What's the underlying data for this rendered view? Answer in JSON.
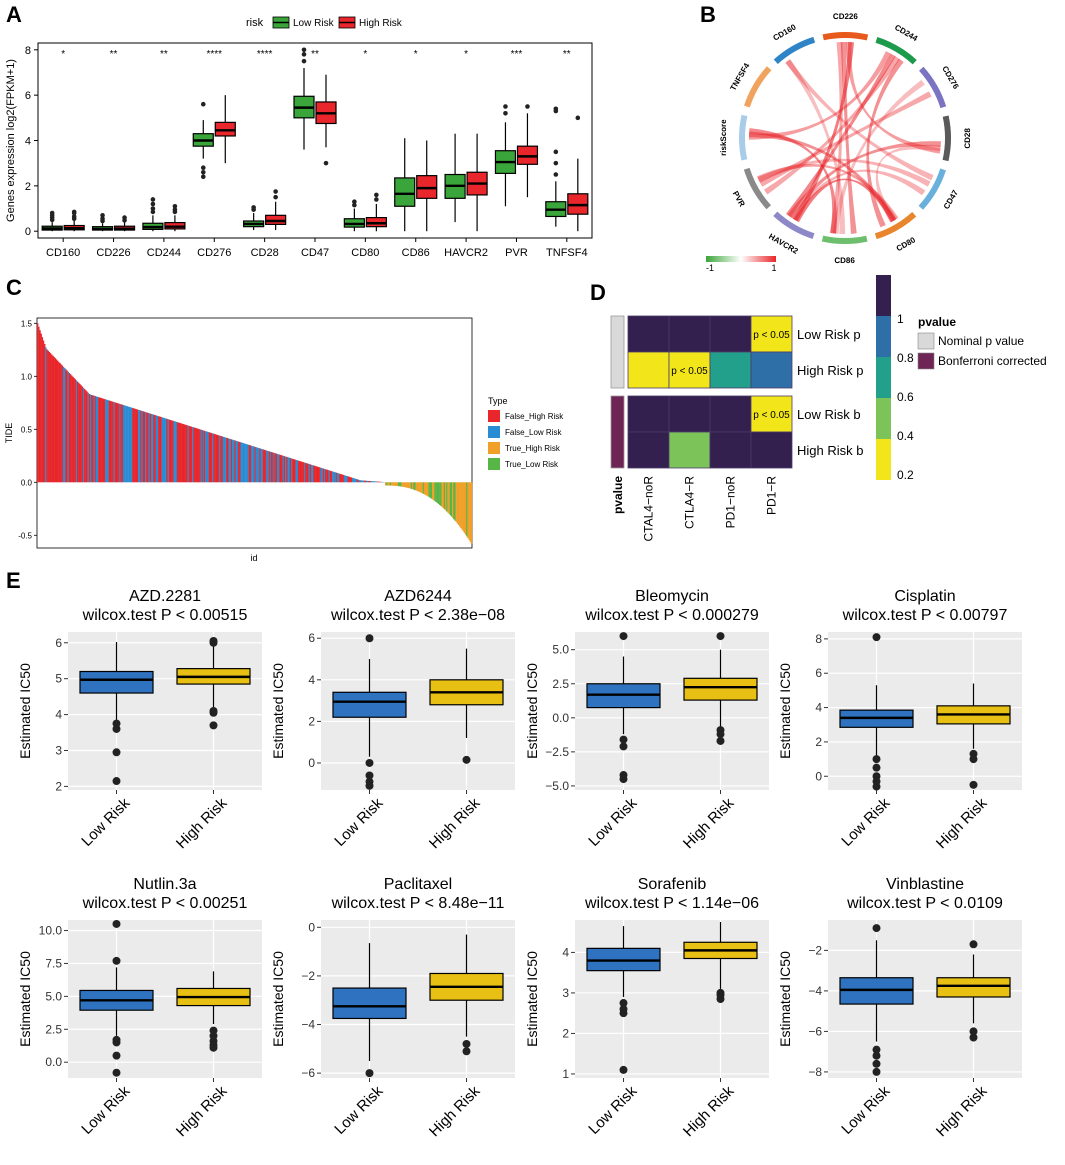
{
  "panels": {
    "A": "A",
    "B": "B",
    "C": "C",
    "D": "D",
    "E": "E"
  },
  "colors": {
    "low": "#3aa53a",
    "high": "#e8262b",
    "drug_low": "#2f72c0",
    "drug_high": "#e8c013",
    "panel_bg": "#ebebeb"
  },
  "chart_data": [
    {
      "id": "A",
      "type": "boxplot",
      "ylabel": "Genes expression log2(FPKM+1)",
      "ylim": [
        -0.3,
        8.3
      ],
      "yticks": [
        0,
        2,
        4,
        6,
        8
      ],
      "legend": {
        "title": "risk",
        "items": [
          "Low Risk",
          "High Risk"
        ]
      },
      "categories": [
        "CD160",
        "CD226",
        "CD244",
        "CD276",
        "CD28",
        "CD47",
        "CD80",
        "CD86",
        "HAVCR2",
        "PVR",
        "TNFSF4"
      ],
      "significance": [
        "*",
        "**",
        "**",
        "****",
        "****",
        "**",
        "*",
        "*",
        "*",
        "***",
        "**"
      ],
      "series": [
        {
          "name": "Low Risk",
          "boxes": [
            {
              "min": 0,
              "q1": 0.05,
              "med": 0.12,
              "q3": 0.22,
              "max": 0.4,
              "out": [
                0.5,
                0.6,
                0.7,
                0.8
              ]
            },
            {
              "min": 0,
              "q1": 0.05,
              "med": 0.1,
              "q3": 0.2,
              "max": 0.35,
              "out": [
                0.45,
                0.55,
                0.7
              ]
            },
            {
              "min": 0,
              "q1": 0.08,
              "med": 0.18,
              "q3": 0.35,
              "max": 0.7,
              "out": [
                0.85,
                1.0,
                1.2,
                1.4
              ]
            },
            {
              "min": 3.2,
              "q1": 3.75,
              "med": 4.0,
              "q3": 4.3,
              "max": 4.9,
              "out": [
                2.4,
                2.6,
                2.8,
                5.6
              ]
            },
            {
              "min": 0.05,
              "q1": 0.2,
              "med": 0.32,
              "q3": 0.45,
              "max": 0.8,
              "out": [
                0.95,
                1.05
              ]
            },
            {
              "min": 3.6,
              "q1": 5.0,
              "med": 5.45,
              "q3": 5.95,
              "max": 7.2,
              "out": [
                7.5,
                7.8,
                8.0
              ]
            },
            {
              "min": 0,
              "q1": 0.18,
              "med": 0.32,
              "q3": 0.55,
              "max": 1.0,
              "out": [
                1.15,
                1.3
              ]
            },
            {
              "min": 0,
              "q1": 1.1,
              "med": 1.65,
              "q3": 2.35,
              "max": 4.1,
              "out": []
            },
            {
              "min": 0.4,
              "q1": 1.45,
              "med": 2.0,
              "q3": 2.5,
              "max": 4.3,
              "out": []
            },
            {
              "min": 1.1,
              "q1": 2.55,
              "med": 3.05,
              "q3": 3.55,
              "max": 4.8,
              "out": [
                5.2,
                5.5
              ]
            },
            {
              "min": 0.2,
              "q1": 0.65,
              "med": 0.95,
              "q3": 1.3,
              "max": 2.2,
              "out": [
                2.5,
                3.0,
                3.5,
                5.3,
                5.4
              ]
            }
          ]
        },
        {
          "name": "High Risk",
          "boxes": [
            {
              "min": 0,
              "q1": 0.06,
              "med": 0.13,
              "q3": 0.25,
              "max": 0.45,
              "out": [
                0.55,
                0.65,
                0.8,
                0.85
              ]
            },
            {
              "min": 0,
              "q1": 0.05,
              "med": 0.11,
              "q3": 0.22,
              "max": 0.38,
              "out": [
                0.48,
                0.6
              ]
            },
            {
              "min": 0,
              "q1": 0.1,
              "med": 0.2,
              "q3": 0.38,
              "max": 0.7,
              "out": [
                0.85,
                0.95,
                1.1
              ]
            },
            {
              "min": 3.0,
              "q1": 4.2,
              "med": 4.45,
              "q3": 4.8,
              "max": 6.0,
              "out": []
            },
            {
              "min": 0.05,
              "q1": 0.3,
              "med": 0.45,
              "q3": 0.7,
              "max": 1.3,
              "out": [
                1.5,
                1.75
              ]
            },
            {
              "min": 3.7,
              "q1": 4.75,
              "med": 5.2,
              "q3": 5.7,
              "max": 6.9,
              "out": [
                3.0
              ]
            },
            {
              "min": 0,
              "q1": 0.2,
              "med": 0.35,
              "q3": 0.6,
              "max": 1.2,
              "out": [
                1.4,
                1.6
              ]
            },
            {
              "min": 0,
              "q1": 1.45,
              "med": 1.9,
              "q3": 2.45,
              "max": 4.0,
              "out": []
            },
            {
              "min": 0,
              "q1": 1.6,
              "med": 2.1,
              "q3": 2.6,
              "max": 4.3,
              "out": []
            },
            {
              "min": 1.5,
              "q1": 2.95,
              "med": 3.3,
              "q3": 3.75,
              "max": 5.2,
              "out": [
                5.5
              ]
            },
            {
              "min": 0,
              "q1": 0.75,
              "med": 1.15,
              "q3": 1.65,
              "max": 3.2,
              "out": [
                5.0
              ]
            }
          ]
        }
      ]
    },
    {
      "id": "B",
      "type": "chord",
      "sectors": [
        "CD160",
        "CD226",
        "CD244",
        "CD276",
        "CD28",
        "CD47",
        "CD80",
        "CD86",
        "HAVCR2",
        "PVR",
        "riskScore",
        "TNFSF4"
      ],
      "sector_colors": [
        "#2f83c7",
        "#e75a1b",
        "#1d9a4b",
        "#7b74c2",
        "#5a5a5a",
        "#6ab0dd",
        "#e9852c",
        "#6dbf6d",
        "#8d88c8",
        "#8a8a8a",
        "#a9cde8",
        "#f0a35e"
      ],
      "scale_labels": [
        "-1",
        "1"
      ]
    },
    {
      "id": "C",
      "type": "bar",
      "ylabel": "TIDE",
      "xlabel": "id",
      "ylim": [
        -0.62,
        1.55
      ],
      "yticks": [
        -0.5,
        0.0,
        0.5,
        1.0,
        1.5
      ],
      "legend": {
        "title": "Type",
        "items": [
          "False_High Risk",
          "False_Low Risk",
          "True_High Risk",
          "True_Low Risk"
        ]
      },
      "type_colors": [
        "#e8262b",
        "#2a8cd3",
        "#f0a028",
        "#58b548"
      ],
      "n_bars": 370,
      "description": "sorted descending TIDE values; positive bars are False_* types, negative bars are True_* types"
    },
    {
      "id": "D",
      "type": "heatmap",
      "columns": [
        "CTAL4−noR",
        "CTLA4−R",
        "PD1−noR",
        "PD1−R"
      ],
      "rows": [
        "Low Risk p",
        "High Risk p",
        "Low Risk b",
        "High Risk b"
      ],
      "values": [
        [
          1.0,
          1.0,
          1.0,
          0.05
        ],
        [
          0.05,
          0.05,
          0.45,
          0.75
        ],
        [
          1.0,
          1.0,
          1.0,
          0.05
        ],
        [
          1.0,
          0.35,
          1.0,
          1.0
        ]
      ],
      "cell_labels": [
        [
          "",
          "",
          "",
          "p < 0.05"
        ],
        [
          "",
          "p < 0.05",
          "",
          ""
        ],
        [
          "",
          "",
          "",
          "p < 0.05"
        ],
        [
          "",
          "",
          "",
          ""
        ]
      ],
      "colorbar_ticks": [
        "1",
        "0.8",
        "0.6",
        "0.4",
        "0.2"
      ],
      "row_annotation_label": "pvalue",
      "legend": {
        "title": "pvalue",
        "items": [
          "Nominal p value",
          "Bonferroni corrected"
        ]
      }
    },
    {
      "id": "E",
      "type": "boxplot-grid",
      "ylabel": "Estimated IC50",
      "categories": [
        "Low Risk",
        "High Risk"
      ],
      "plots": [
        {
          "title": "AZD.2281",
          "subtitle": "wilcox.test P <  0.00515",
          "ylim": [
            1.9,
            6.3
          ],
          "yticks": [
            "2",
            "3",
            "4",
            "5",
            "6"
          ],
          "ytick_values": [
            2,
            3,
            4,
            5,
            6
          ],
          "boxes": [
            {
              "min": 3.85,
              "q1": 4.6,
              "med": 4.97,
              "q3": 5.2,
              "max": 6.02,
              "out": [
                3.75,
                3.6,
                2.95,
                2.15
              ]
            },
            {
              "min": 4.2,
              "q1": 4.85,
              "med": 5.05,
              "q3": 5.28,
              "max": 5.95,
              "out": [
                6.0,
                6.05,
                4.1,
                4.05,
                3.7
              ]
            }
          ]
        },
        {
          "title": "AZD6244",
          "subtitle": "wilcox.test P <  2.38e−08",
          "ylim": [
            -1.3,
            6.3
          ],
          "yticks": [
            "0",
            "2",
            "4",
            "6"
          ],
          "ytick_values": [
            0,
            2,
            4,
            6
          ],
          "boxes": [
            {
              "min": 0.3,
              "q1": 2.2,
              "med": 2.95,
              "q3": 3.4,
              "max": 5.0,
              "out": [
                6.0,
                0.0,
                -0.6,
                -0.9,
                -1.1
              ]
            },
            {
              "min": 1.2,
              "q1": 2.8,
              "med": 3.4,
              "q3": 4.0,
              "max": 5.5,
              "out": [
                0.15
              ]
            }
          ]
        },
        {
          "title": "Bleomycin",
          "subtitle": "wilcox.test P <  0.000279",
          "ylim": [
            -5.3,
            6.3
          ],
          "yticks": [
            "5.0",
            "2.5",
            "0.0",
            "−2.5",
            "−5.0"
          ],
          "ytick_values": [
            5,
            2.5,
            0,
            -2.5,
            -5
          ],
          "boxes": [
            {
              "min": -1.2,
              "q1": 0.75,
              "med": 1.7,
              "q3": 2.5,
              "max": 4.5,
              "out": [
                6.0,
                -1.6,
                -2.1,
                -4.2,
                -4.5
              ]
            },
            {
              "min": -0.7,
              "q1": 1.3,
              "med": 2.25,
              "q3": 2.9,
              "max": 5.0,
              "out": [
                6.0,
                -0.9,
                -1.2,
                -1.7
              ]
            }
          ]
        },
        {
          "title": "Cisplatin",
          "subtitle": "wilcox.test P <  0.00797",
          "ylim": [
            -0.8,
            8.4
          ],
          "yticks": [
            "8",
            "6",
            "4",
            "2",
            "0"
          ],
          "ytick_values": [
            8,
            6,
            4,
            2,
            0
          ],
          "boxes": [
            {
              "min": 1.2,
              "q1": 2.85,
              "med": 3.4,
              "q3": 3.85,
              "max": 5.3,
              "out": [
                8.1,
                1.0,
                0.5,
                0.0,
                -0.3,
                -0.6
              ]
            },
            {
              "min": 1.6,
              "q1": 3.05,
              "med": 3.6,
              "q3": 4.1,
              "max": 5.4,
              "out": [
                1.3,
                1.0,
                -0.5
              ]
            }
          ]
        },
        {
          "title": "Nutlin.3a",
          "subtitle": "wilcox.test P <  0.00251",
          "ylim": [
            -1.2,
            10.8
          ],
          "yticks": [
            "10.0",
            "7.5",
            "5.0",
            "2.5",
            "0.0"
          ],
          "ytick_values": [
            10,
            7.5,
            5,
            2.5,
            0
          ],
          "boxes": [
            {
              "min": 2.0,
              "q1": 3.95,
              "med": 4.7,
              "q3": 5.45,
              "max": 7.2,
              "out": [
                10.5,
                7.7,
                1.7,
                1.5,
                0.5,
                -0.8
              ]
            },
            {
              "min": 2.9,
              "q1": 4.3,
              "med": 4.95,
              "q3": 5.6,
              "max": 6.9,
              "out": [
                2.4,
                2.0,
                1.6,
                1.3,
                1.1
              ]
            }
          ]
        },
        {
          "title": "Paclitaxel",
          "subtitle": "wilcox.test P <  8.48e−11",
          "ylim": [
            -6.2,
            0.3
          ],
          "yticks": [
            "0",
            "−2",
            "−4",
            "−6"
          ],
          "ytick_values": [
            0,
            -2,
            -4,
            -6
          ],
          "boxes": [
            {
              "min": -5.5,
              "q1": -3.75,
              "med": -3.25,
              "q3": -2.5,
              "max": -0.65,
              "out": [
                -6.0
              ]
            },
            {
              "min": -4.5,
              "q1": -3.0,
              "med": -2.45,
              "q3": -1.9,
              "max": -0.3,
              "out": [
                -4.8,
                -5.1
              ]
            }
          ]
        },
        {
          "title": "Sorafenib",
          "subtitle": "wilcox.test P <  1.14e−06",
          "ylim": [
            0.9,
            4.8
          ],
          "yticks": [
            "4",
            "3",
            "2",
            "1"
          ],
          "ytick_values": [
            4,
            3,
            2,
            1
          ],
          "boxes": [
            {
              "min": 2.9,
              "q1": 3.55,
              "med": 3.8,
              "q3": 4.1,
              "max": 4.65,
              "out": [
                2.75,
                2.6,
                2.5,
                1.1
              ]
            },
            {
              "min": 3.1,
              "q1": 3.85,
              "med": 4.05,
              "q3": 4.25,
              "max": 4.75,
              "out": [
                3.0,
                2.95,
                2.85
              ]
            }
          ]
        },
        {
          "title": "Vinblastine",
          "subtitle": "wilcox.test P <  0.0109",
          "ylim": [
            -8.3,
            -0.5
          ],
          "yticks": [
            "−2",
            "−4",
            "−6",
            "−8"
          ],
          "ytick_values": [
            -2,
            -4,
            -6,
            -8
          ],
          "boxes": [
            {
              "min": -6.5,
              "q1": -4.65,
              "med": -3.95,
              "q3": -3.35,
              "max": -1.5,
              "out": [
                -0.9,
                -6.9,
                -7.2,
                -7.6,
                -8.0
              ]
            },
            {
              "min": -5.6,
              "q1": -4.3,
              "med": -3.75,
              "q3": -3.35,
              "max": -2.2,
              "out": [
                -1.7,
                -6.0,
                -6.3
              ]
            }
          ]
        }
      ]
    }
  ]
}
